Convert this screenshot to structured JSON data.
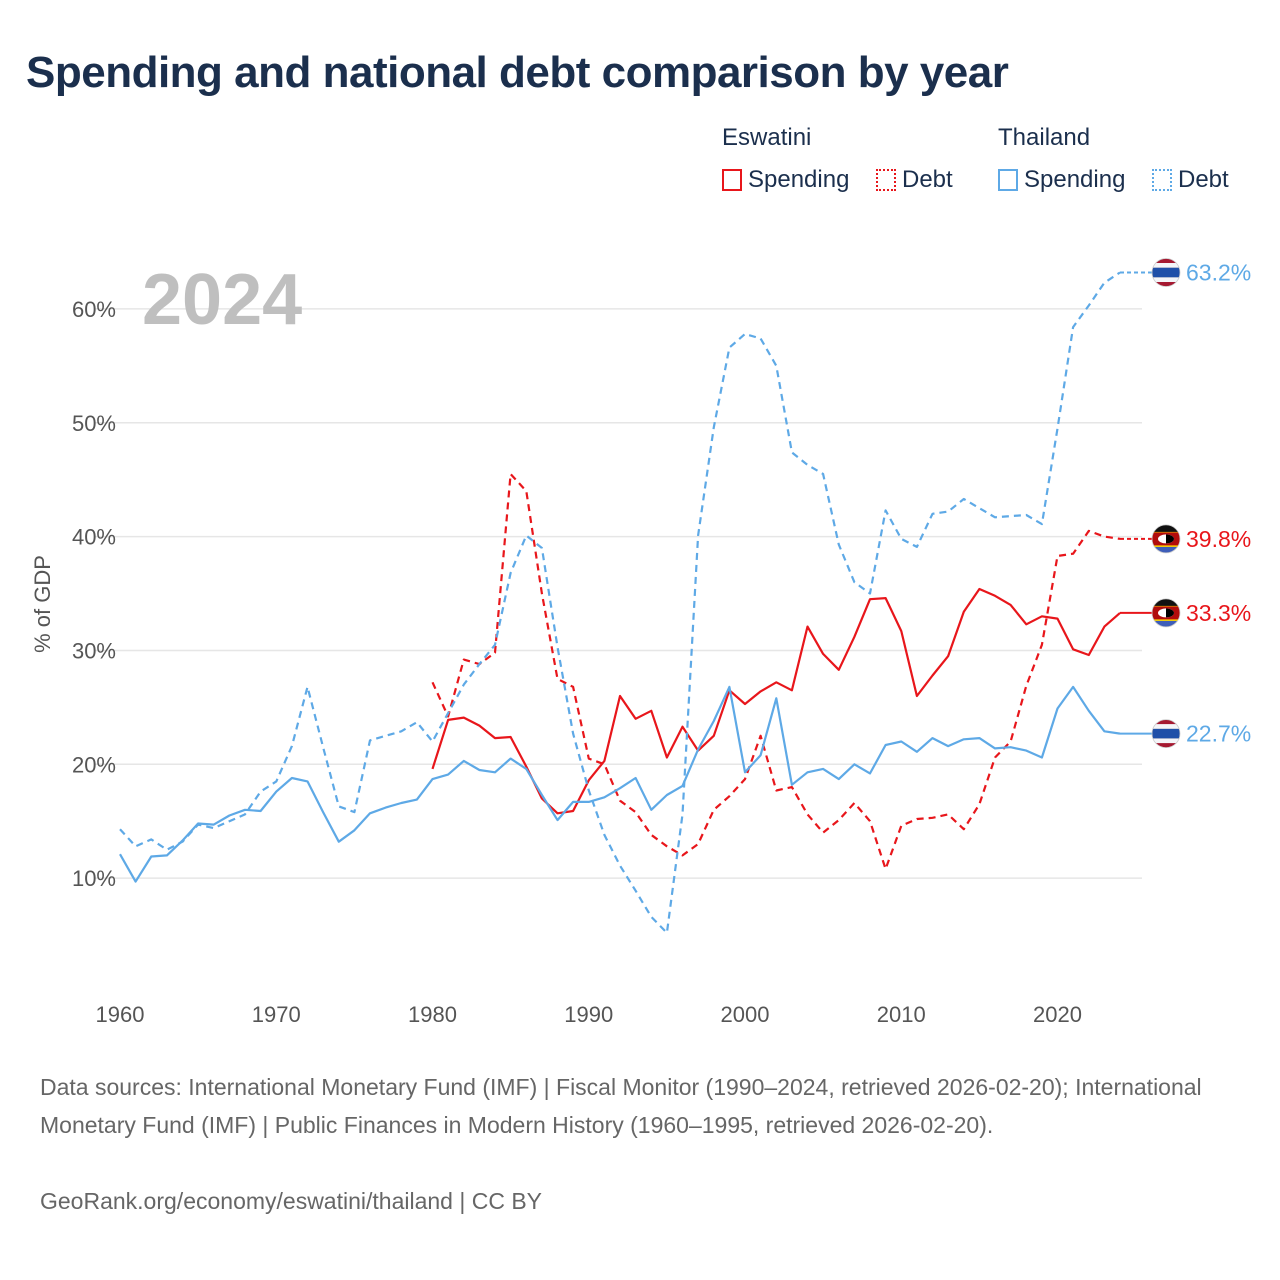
{
  "title": "Spending and national debt comparison by year",
  "legend": {
    "groups": [
      {
        "name": "Eswatini",
        "color": "#e8161b",
        "items": [
          {
            "label": "Spending",
            "style": "solid"
          },
          {
            "label": "Debt",
            "style": "dotted"
          }
        ]
      },
      {
        "name": "Thailand",
        "color": "#5ea9e6",
        "items": [
          {
            "label": "Spending",
            "style": "solid"
          },
          {
            "label": "Debt",
            "style": "dotted"
          }
        ]
      }
    ]
  },
  "source_text": "Data sources: International Monetary Fund (IMF) | Fiscal Monitor (1990–2024, retrieved 2026-02-20); International Monetary Fund (IMF) | Public Finances in Modern History (1960–1995, retrieved 2026-02-20).",
  "credit": "GeoRank.org/economy/eswatini/thailand | CC BY",
  "chart_data": {
    "type": "line",
    "year_label": "2024",
    "ylabel": "% of GDP",
    "xlim": [
      1960,
      2024
    ],
    "ylim": [
      0,
      65
    ],
    "xticks": [
      1960,
      1970,
      1980,
      1990,
      2000,
      2010,
      2020
    ],
    "yticks": [
      10,
      20,
      30,
      40,
      50,
      60
    ],
    "ytick_labels": [
      "10%",
      "20%",
      "30%",
      "40%",
      "50%",
      "60%"
    ],
    "series": [
      {
        "name": "Eswatini Debt",
        "country": "Eswatini",
        "kind": "Debt",
        "color": "#e8161b",
        "dashed": true,
        "end_label": "39.8%",
        "flag": "eswatini",
        "x": [
          1980,
          1981,
          1982,
          1983,
          1984,
          1985,
          1986,
          1987,
          1988,
          1989,
          1990,
          1991,
          1992,
          1993,
          1994,
          1995,
          1996,
          1997,
          1998,
          1999,
          2000,
          2001,
          2002,
          2003,
          2004,
          2005,
          2006,
          2007,
          2008,
          2009,
          2010,
          2011,
          2012,
          2013,
          2014,
          2015,
          2016,
          2017,
          2018,
          2019,
          2020,
          2021,
          2022,
          2023,
          2024
        ],
        "y": [
          27.2,
          24.2,
          29.2,
          28.8,
          29.8,
          45.5,
          44.0,
          35.0,
          27.5,
          26.8,
          20.5,
          20.0,
          16.8,
          15.8,
          13.8,
          12.8,
          12.0,
          13.0,
          16.0,
          17.2,
          18.7,
          22.5,
          17.7,
          18.0,
          15.6,
          14.0,
          15.1,
          16.6,
          15.0,
          10.8,
          14.6,
          15.2,
          15.3,
          15.6,
          14.3,
          16.5,
          20.6,
          22.0,
          26.9,
          30.5,
          38.3,
          38.5,
          40.5,
          40.0,
          39.8
        ]
      },
      {
        "name": "Eswatini Spending",
        "country": "Eswatini",
        "kind": "Spending",
        "color": "#e8161b",
        "dashed": false,
        "end_label": "33.3%",
        "flag": "eswatini",
        "x": [
          1980,
          1981,
          1982,
          1983,
          1984,
          1985,
          1986,
          1987,
          1988,
          1989,
          1990,
          1991,
          1992,
          1993,
          1994,
          1995,
          1996,
          1997,
          1998,
          1999,
          2000,
          2001,
          2002,
          2003,
          2004,
          2005,
          2006,
          2007,
          2008,
          2009,
          2010,
          2011,
          2012,
          2013,
          2014,
          2015,
          2016,
          2017,
          2018,
          2019,
          2020,
          2021,
          2022,
          2023,
          2024
        ],
        "y": [
          19.6,
          23.9,
          24.1,
          23.4,
          22.3,
          22.4,
          19.8,
          17.0,
          15.7,
          15.9,
          18.6,
          20.3,
          26.0,
          24.0,
          24.7,
          20.6,
          23.3,
          21.2,
          22.5,
          26.5,
          25.3,
          26.4,
          27.2,
          26.5,
          32.1,
          29.7,
          28.3,
          31.2,
          34.5,
          34.6,
          31.7,
          26.0,
          27.8,
          29.5,
          33.4,
          35.4,
          34.8,
          34.0,
          32.3,
          33.0,
          32.8,
          30.1,
          29.6,
          32.1,
          33.3
        ]
      },
      {
        "name": "Thailand Debt",
        "country": "Thailand",
        "kind": "Debt",
        "color": "#5ea9e6",
        "dashed": true,
        "end_label": "63.2%",
        "flag": "thailand",
        "x": [
          1960,
          1961,
          1962,
          1963,
          1964,
          1965,
          1966,
          1967,
          1968,
          1969,
          1970,
          1971,
          1972,
          1973,
          1974,
          1975,
          1976,
          1977,
          1978,
          1979,
          1980,
          1981,
          1982,
          1983,
          1984,
          1985,
          1986,
          1987,
          1988,
          1989,
          1990,
          1991,
          1992,
          1993,
          1994,
          1995,
          1996,
          1997,
          1998,
          1999,
          2000,
          2001,
          2002,
          2003,
          2004,
          2005,
          2006,
          2007,
          2008,
          2009,
          2010,
          2011,
          2012,
          2013,
          2014,
          2015,
          2016,
          2017,
          2018,
          2019,
          2020,
          2021,
          2022,
          2023,
          2024
        ],
        "y": [
          14.3,
          12.8,
          13.4,
          12.5,
          13.2,
          14.7,
          14.4,
          15.0,
          15.6,
          17.6,
          18.5,
          21.6,
          26.8,
          21.5,
          16.3,
          15.8,
          22.1,
          22.5,
          22.9,
          23.7,
          22.0,
          24.5,
          27.0,
          28.8,
          30.5,
          36.8,
          40.1,
          39.0,
          30.3,
          22.7,
          17.7,
          13.8,
          11.1,
          8.9,
          6.6,
          5.2,
          15.6,
          40.1,
          49.6,
          56.6,
          57.8,
          57.4,
          55.0,
          47.4,
          46.3,
          45.5,
          39.3,
          36.0,
          35.0,
          42.3,
          39.8,
          39.1,
          42.0,
          42.2,
          43.3,
          42.5,
          41.7,
          41.8,
          41.9,
          41.1,
          49.5,
          58.4,
          60.3,
          62.3,
          63.2
        ]
      },
      {
        "name": "Thailand Spending",
        "country": "Thailand",
        "kind": "Spending",
        "color": "#5ea9e6",
        "dashed": false,
        "end_label": "22.7%",
        "flag": "thailand",
        "x": [
          1960,
          1961,
          1962,
          1963,
          1964,
          1965,
          1966,
          1967,
          1968,
          1969,
          1970,
          1971,
          1972,
          1973,
          1974,
          1975,
          1976,
          1977,
          1978,
          1979,
          1980,
          1981,
          1982,
          1983,
          1984,
          1985,
          1986,
          1987,
          1988,
          1989,
          1990,
          1991,
          1992,
          1993,
          1994,
          1995,
          1996,
          1997,
          1998,
          1999,
          2000,
          2001,
          2002,
          2003,
          2004,
          2005,
          2006,
          2007,
          2008,
          2009,
          2010,
          2011,
          2012,
          2013,
          2014,
          2015,
          2016,
          2017,
          2018,
          2019,
          2020,
          2021,
          2022,
          2023,
          2024
        ],
        "y": [
          12.1,
          9.7,
          11.9,
          12.0,
          13.3,
          14.8,
          14.7,
          15.5,
          16.0,
          15.9,
          17.6,
          18.8,
          18.5,
          15.8,
          13.2,
          14.2,
          15.7,
          16.2,
          16.6,
          16.9,
          18.7,
          19.1,
          20.3,
          19.5,
          19.3,
          20.5,
          19.6,
          17.3,
          15.1,
          16.7,
          16.7,
          17.1,
          17.9,
          18.8,
          16.0,
          17.3,
          18.1,
          21.3,
          23.8,
          26.8,
          19.3,
          20.8,
          25.8,
          18.2,
          19.3,
          19.6,
          18.7,
          20.0,
          19.2,
          21.7,
          22.0,
          21.1,
          22.3,
          21.6,
          22.2,
          22.3,
          21.4,
          21.5,
          21.2,
          20.6,
          24.9,
          26.8,
          24.7,
          22.9,
          22.7
        ]
      }
    ]
  }
}
